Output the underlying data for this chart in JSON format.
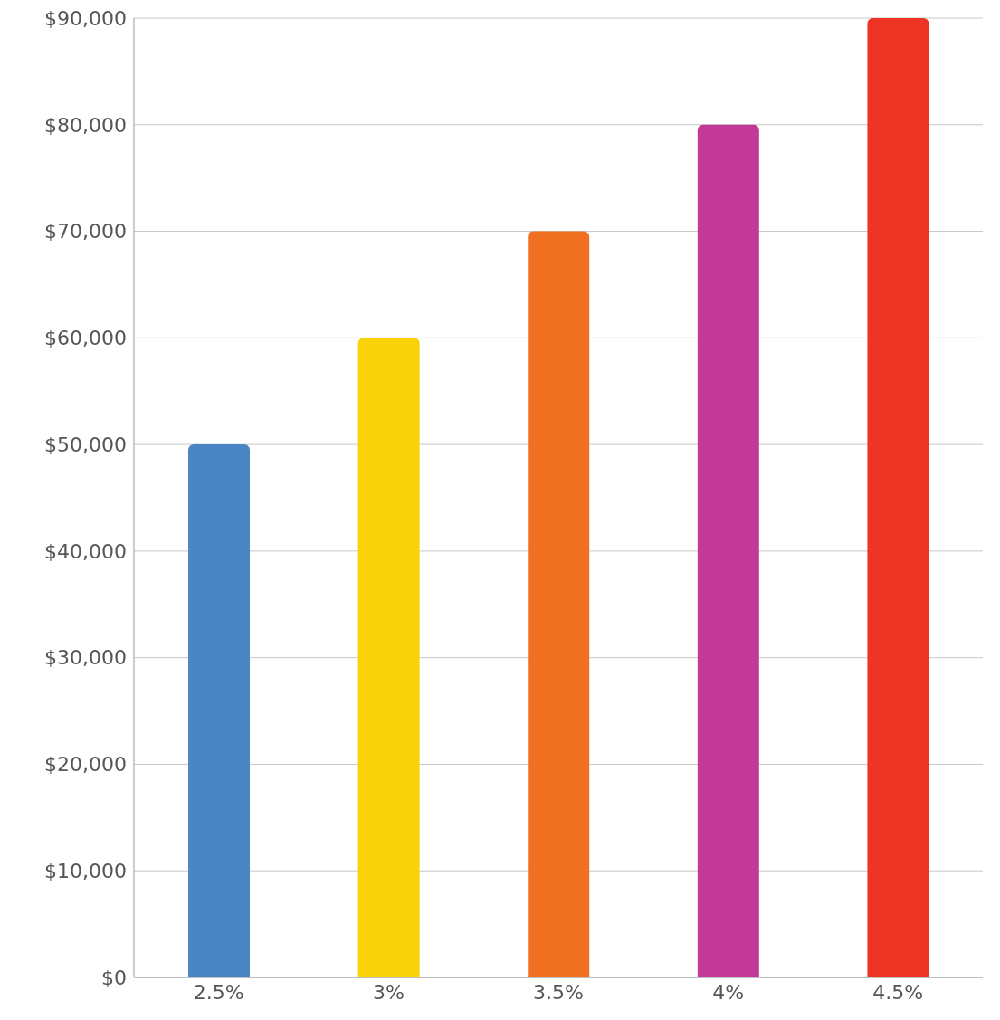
{
  "chart_data": {
    "type": "bar",
    "categories": [
      "2.5%",
      "3%",
      "3.5%",
      "4%",
      "4.5%"
    ],
    "values": [
      50000,
      60000,
      70000,
      80000,
      90000
    ],
    "colors": [
      "#4a86c5",
      "#fad20a",
      "#f07022",
      "#c33a96",
      "#ee3424"
    ],
    "ylim": [
      0,
      90000
    ],
    "yticks": [
      {
        "value": 0,
        "label": "$0"
      },
      {
        "value": 10000,
        "label": "$10,000"
      },
      {
        "value": 20000,
        "label": "$20,000"
      },
      {
        "value": 30000,
        "label": "$30,000"
      },
      {
        "value": 40000,
        "label": "$40,000"
      },
      {
        "value": 50000,
        "label": "$50,000"
      },
      {
        "value": 60000,
        "label": "$60,000"
      },
      {
        "value": 70000,
        "label": "$70,000"
      },
      {
        "value": 80000,
        "label": "$80,000"
      },
      {
        "value": 90000,
        "label": "$90,000"
      }
    ],
    "grid": "y"
  }
}
